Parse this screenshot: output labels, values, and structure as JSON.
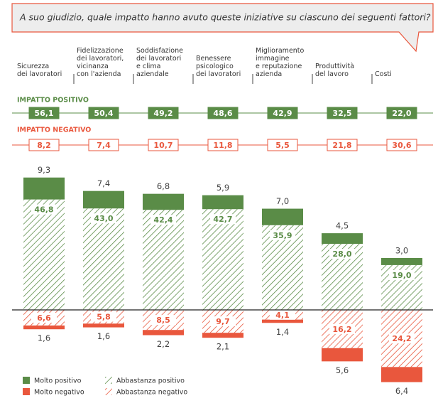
{
  "chart_data": {
    "type": "diverging_stacked_bar",
    "title": "A suo giudizio, quale impatto hanno avuto queste iniziative su ciascuno dei seguenti fattori?",
    "categories": [
      "Sicurezza\ndei lavoratori",
      "Fidelizzazione\ndei lavoratori,\nvicinanza\ncon l'azienda",
      "Soddisfazione\ndei lavoratori\ne clima\naziendale",
      "Benessere\npsicologico\ndei lavoratori",
      "Miglioramento\nimmagine\ne reputazione\nazienda",
      "Produttività\ndel lavoro",
      "Costi"
    ],
    "positive_impact": {
      "label": "IMPATTO POSITIVO",
      "color": "#5a8c47",
      "values": [
        56.1,
        50.4,
        49.2,
        48.6,
        42.9,
        32.5,
        22.0
      ],
      "value_labels": [
        "56,1",
        "50,4",
        "49,2",
        "48,6",
        "42,9",
        "32,5",
        "22,0"
      ]
    },
    "negative_impact": {
      "label": "IMPATTO NEGATIVO",
      "color": "#e9573d",
      "values": [
        8.2,
        7.4,
        10.7,
        11.8,
        5.5,
        21.8,
        30.6
      ],
      "value_labels": [
        "8,2",
        "7,4",
        "10,7",
        "11,8",
        "5,5",
        "21,8",
        "30,6"
      ]
    },
    "series": [
      {
        "name": "Molto positivo",
        "color": "#5a8c47",
        "hatch": false,
        "values": [
          9.3,
          7.4,
          6.8,
          5.9,
          7.0,
          4.5,
          3.0
        ],
        "value_labels": [
          "9,3",
          "7,4",
          "6,8",
          "5,9",
          "7,0",
          "4,5",
          "3,0"
        ]
      },
      {
        "name": "Abbastanza positivo",
        "color": "#5a8c47",
        "hatch": true,
        "values": [
          46.8,
          43.0,
          42.4,
          42.7,
          35.9,
          28.0,
          19.0
        ],
        "value_labels": [
          "46,8",
          "43,0",
          "42,4",
          "42,7",
          "35,9",
          "28,0",
          "19,0"
        ]
      },
      {
        "name": "Molto negativo",
        "color": "#e9573d",
        "hatch": false,
        "values": [
          1.6,
          1.6,
          2.2,
          2.1,
          1.4,
          5.6,
          6.4
        ],
        "value_labels": [
          "1,6",
          "1,6",
          "2,2",
          "2,1",
          "1,4",
          "5,6",
          "6,4"
        ]
      },
      {
        "name": "Abbastanza negativo",
        "color": "#e9573d",
        "hatch": true,
        "values": [
          6.6,
          5.8,
          8.5,
          9.7,
          4.1,
          16.2,
          24.2
        ],
        "value_labels": [
          "6,6",
          "5,8",
          "8,5",
          "9,7",
          "4,1",
          "16,2",
          "24,2"
        ]
      }
    ]
  }
}
